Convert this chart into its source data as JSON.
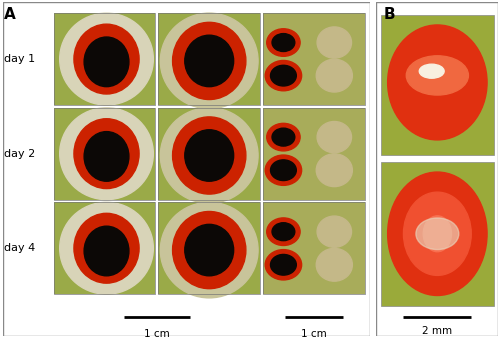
{
  "fig_width": 5.0,
  "fig_height": 3.57,
  "dpi": 100,
  "background_color": "#ffffff",
  "panel_A_label": "A",
  "panel_B_label": "B",
  "day_labels": [
    "day 1",
    "day 2",
    "day 4"
  ],
  "scale_bar_left_label": "1 cm",
  "scale_bar_right_label": "1 cm",
  "scale_bar_B_label": "2 mm",
  "green_bg": "#b8bc5a",
  "white_dish": "#e8e4d0",
  "dark_center": "#100c06",
  "red_ring": "#cc2200",
  "tan_body": "#c8b888",
  "outer_border": "#999999"
}
